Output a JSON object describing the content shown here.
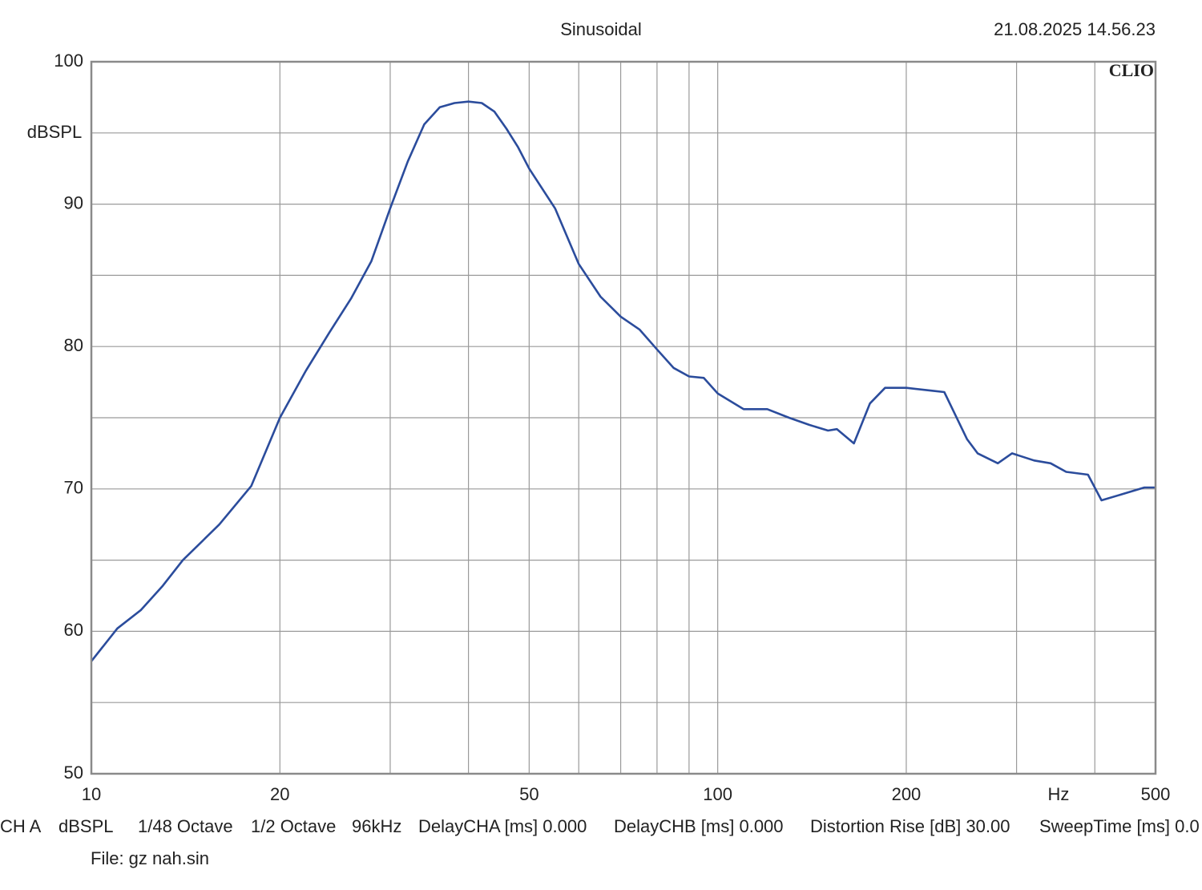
{
  "chart_data": {
    "type": "line",
    "title": "Sinusoidal",
    "timestamp": "21.08.2025 14.56.23",
    "brand": "CLIO",
    "y_label": "dBSPL",
    "x_label": "Hz",
    "log_x": true,
    "grid": true,
    "xlim": [
      10,
      500
    ],
    "ylim": [
      50,
      100
    ],
    "xticks": [
      10,
      20,
      50,
      100,
      200,
      500
    ],
    "xminor": [
      30,
      40,
      60,
      70,
      80,
      90,
      300,
      400
    ],
    "yticks": [
      50,
      60,
      70,
      80,
      90,
      100
    ],
    "yminor": [
      55,
      65,
      75,
      85,
      95
    ],
    "series": [
      {
        "name": "CH A",
        "color": "#2b4c9c",
        "x": [
          10,
          11,
          12,
          13,
          14,
          16,
          18,
          20,
          22,
          24,
          26,
          28,
          30,
          32,
          34,
          36,
          38,
          40,
          42,
          44,
          46,
          48,
          50,
          55,
          60,
          65,
          70,
          75,
          80,
          85,
          90,
          95,
          100,
          110,
          120,
          130,
          140,
          150,
          155,
          165,
          175,
          185,
          200,
          220,
          230,
          250,
          260,
          280,
          295,
          320,
          340,
          360,
          390,
          410,
          440,
          480,
          500
        ],
        "values": [
          57.9,
          60.2,
          61.5,
          63.2,
          65,
          67.5,
          70.2,
          75,
          78.3,
          81,
          83.4,
          86,
          89.7,
          93,
          95.6,
          96.8,
          97.1,
          97.2,
          97.1,
          96.5,
          95.3,
          94,
          92.5,
          89.7,
          85.8,
          83.5,
          82.1,
          81.2,
          79.8,
          78.5,
          77.9,
          77.8,
          76.7,
          75.6,
          75.6,
          75,
          74.5,
          74.1,
          74.2,
          73.2,
          76,
          77.1,
          77.1,
          76.9,
          76.8,
          73.5,
          72.5,
          71.8,
          72.5,
          72,
          71.8,
          71.2,
          71,
          69.2,
          69.6,
          70.1,
          70.1
        ]
      }
    ],
    "settings": [
      "CH A",
      "dBSPL",
      "1/48 Octave",
      "1/2 Octave",
      "96kHz",
      "DelayCHA [ms] 0.000",
      "DelayCHB [ms] 0.000",
      "Distortion Rise [dB] 30.00",
      "SweepTime [ms] 0.0"
    ],
    "file": "File: gz nah.sin"
  }
}
